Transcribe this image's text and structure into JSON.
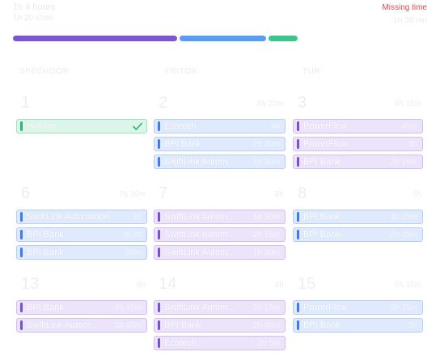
{
  "header": {
    "total_hours": "1h 4 hours",
    "subtitle": "1h 20 shan",
    "missing_label": "Missing time",
    "missing_value": "-1h 30 mn"
  },
  "progress": {
    "colors": [
      "#7c55d1",
      "#5b9bf0",
      "#3cc48d"
    ],
    "fractions": [
      0.58,
      0.31,
      0.11
    ]
  },
  "columns": [
    {
      "day_label": "SPECHOOR"
    },
    {
      "day_label": "FRITOR"
    },
    {
      "day_label": "TUR"
    }
  ],
  "days": [
    {
      "num": "1",
      "total": ""
    },
    {
      "num": "2",
      "total": "8h 20m"
    },
    {
      "num": "3",
      "total": "8h 15m"
    },
    {
      "num": "6",
      "total": "7h 30m"
    },
    {
      "num": "7",
      "total": "8h"
    },
    {
      "num": "8",
      "total": "8h"
    },
    {
      "num": "13",
      "total": "8h"
    },
    {
      "num": "14",
      "total": "8h"
    },
    {
      "num": "15",
      "total": "5h 15m"
    }
  ],
  "entries": {
    "r1c1": [
      {
        "name": "Holiday",
        "duration": "",
        "color": "green",
        "check": true
      }
    ],
    "r1c2": [
      {
        "name": "Ecotech",
        "duration": "4h",
        "color": "blue"
      },
      {
        "name": "BPI Bank",
        "duration": "2h 20m",
        "color": "blue"
      },
      {
        "name": "SwiftLink Autom...",
        "duration": "1h 30m",
        "color": "blue"
      }
    ],
    "r1c3": [
      {
        "name": "PowerFlow",
        "duration": "45m",
        "color": "purple"
      },
      {
        "name": "PowerFlow",
        "duration": "3h",
        "color": "purple"
      },
      {
        "name": "BPI Bank",
        "duration": "2h 15m",
        "color": "purple"
      }
    ],
    "r2c1": [
      {
        "name": "SwiftLink Automation",
        "duration": "1h",
        "color": "blue"
      },
      {
        "name": "BPI Bank",
        "duration": "1h 20",
        "color": "blue"
      },
      {
        "name": "BPI Bank",
        "duration": "50m",
        "color": "blue"
      }
    ],
    "r2c2": [
      {
        "name": "SwiftLink Autom...",
        "duration": "1h 30m",
        "color": "purple"
      },
      {
        "name": "SwiftLink Autom...",
        "duration": "2h 15m",
        "color": "purple"
      },
      {
        "name": "SwiftLink Autom...",
        "duration": "1h 30m",
        "color": "purple"
      }
    ],
    "r2c3": [
      {
        "name": "BPI Bank",
        "duration": "4h 15m",
        "color": "blue"
      },
      {
        "name": "BPI Bank",
        "duration": "2h 45m",
        "color": "blue"
      }
    ],
    "r3c1": [
      {
        "name": "BPI Bank",
        "duration": "4h 45m",
        "color": "purple"
      },
      {
        "name": "SwiftLink Autom...",
        "duration": "3h 15m",
        "color": "purple"
      }
    ],
    "r3c2": [
      {
        "name": "SwiftLink Autom...",
        "duration": "3h 15m",
        "color": "purple"
      },
      {
        "name": "BPI Bank",
        "duration": "2h 40m",
        "color": "purple"
      },
      {
        "name": "Ecotech",
        "duration": "2h 5m",
        "color": "purple"
      }
    ],
    "r3c3": [
      {
        "name": "PowerFlow",
        "duration": "3h 15m",
        "color": "blue"
      },
      {
        "name": "BPI Bank",
        "duration": "2h",
        "color": "blue"
      }
    ]
  }
}
